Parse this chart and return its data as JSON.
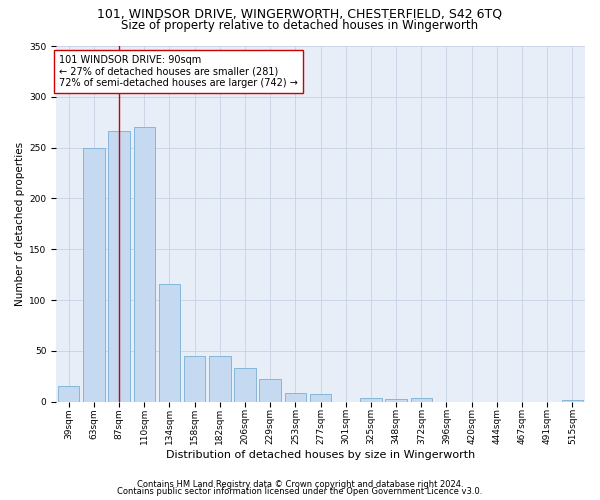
{
  "title1": "101, WINDSOR DRIVE, WINGERWORTH, CHESTERFIELD, S42 6TQ",
  "title2": "Size of property relative to detached houses in Wingerworth",
  "xlabel": "Distribution of detached houses by size in Wingerworth",
  "ylabel": "Number of detached properties",
  "categories": [
    "39sqm",
    "63sqm",
    "87sqm",
    "110sqm",
    "134sqm",
    "158sqm",
    "182sqm",
    "206sqm",
    "229sqm",
    "253sqm",
    "277sqm",
    "301sqm",
    "325sqm",
    "348sqm",
    "372sqm",
    "396sqm",
    "420sqm",
    "444sqm",
    "467sqm",
    "491sqm",
    "515sqm"
  ],
  "values": [
    16,
    250,
    266,
    270,
    116,
    45,
    45,
    33,
    22,
    9,
    8,
    0,
    4,
    3,
    4,
    0,
    0,
    0,
    0,
    0,
    2
  ],
  "bar_color": "#c5d9f0",
  "bar_edge_color": "#7aafd4",
  "vline_x": 2,
  "vline_color": "#cc0000",
  "annotation_text": "101 WINDSOR DRIVE: 90sqm\n← 27% of detached houses are smaller (281)\n72% of semi-detached houses are larger (742) →",
  "annotation_box_color": "#ffffff",
  "annotation_box_edge": "#cc0000",
  "ylim": [
    0,
    350
  ],
  "yticks": [
    0,
    50,
    100,
    150,
    200,
    250,
    300,
    350
  ],
  "bg_color": "#ffffff",
  "plot_bg_color": "#e8eef8",
  "grid_color": "#c0cce0",
  "footer1": "Contains HM Land Registry data © Crown copyright and database right 2024.",
  "footer2": "Contains public sector information licensed under the Open Government Licence v3.0.",
  "title1_fontsize": 9,
  "title2_fontsize": 8.5,
  "xlabel_fontsize": 8,
  "ylabel_fontsize": 7.5,
  "tick_fontsize": 6.5,
  "annotation_fontsize": 7,
  "footer_fontsize": 6
}
